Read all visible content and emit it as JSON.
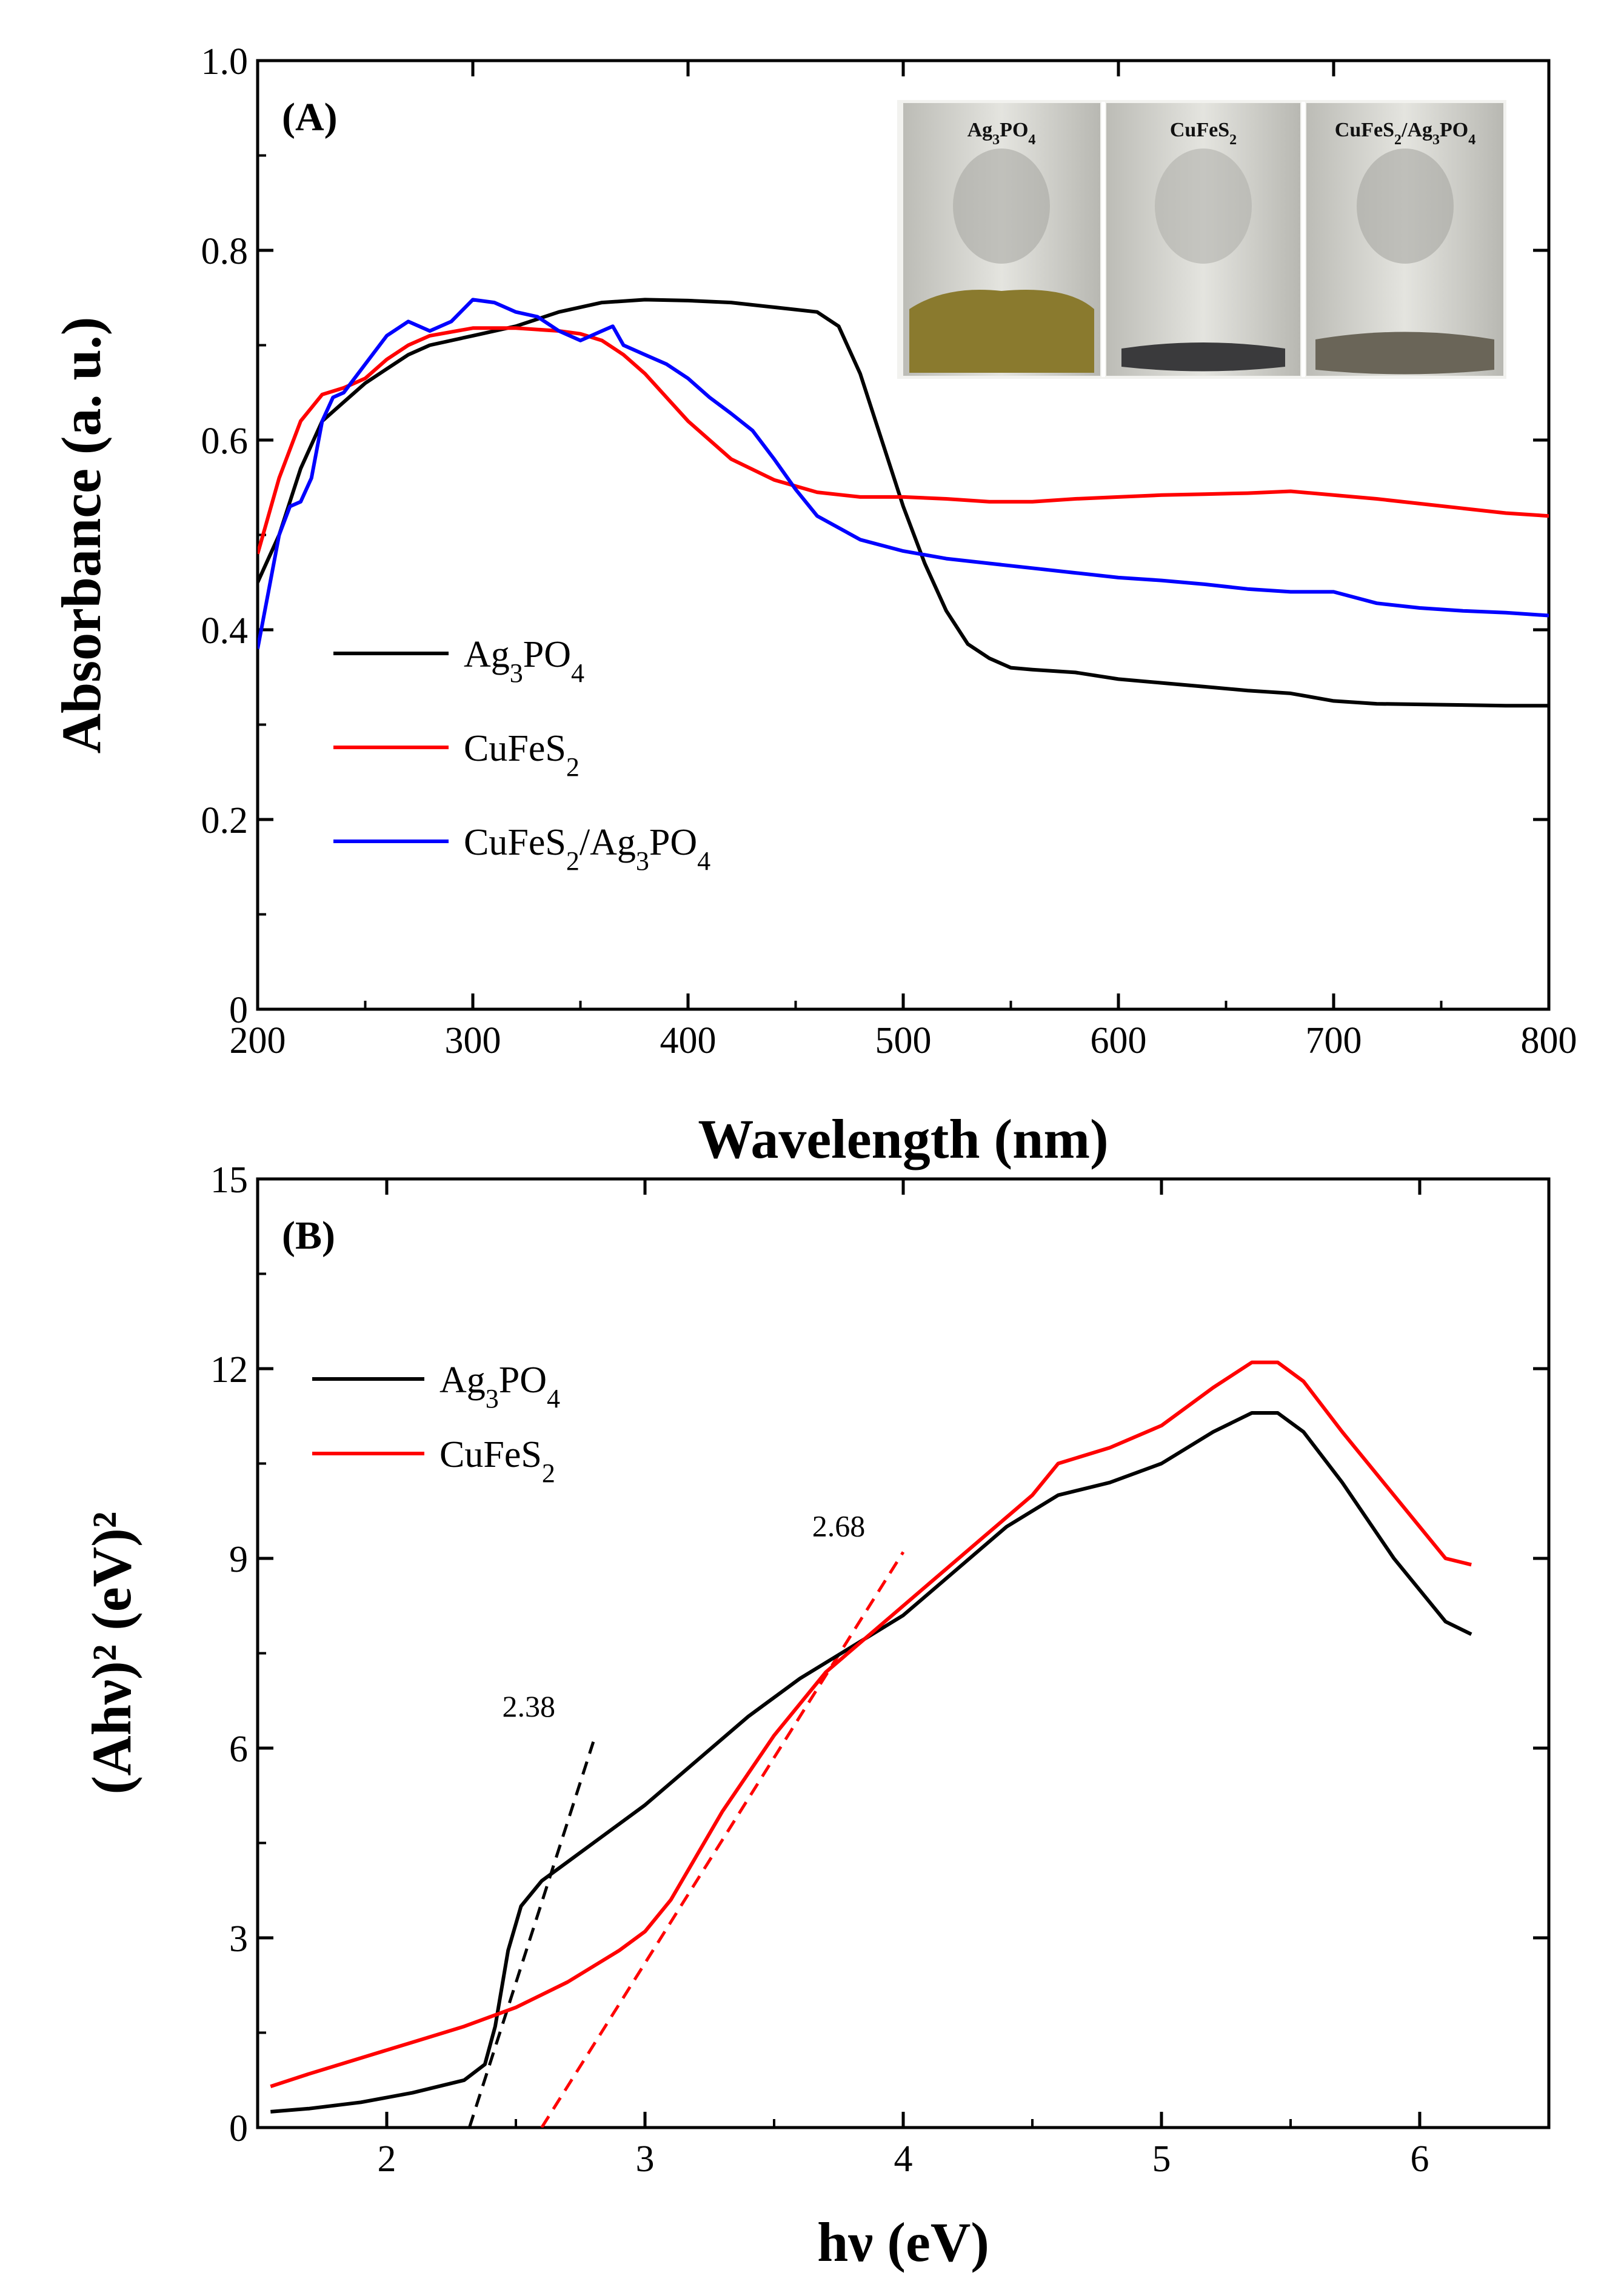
{
  "figure": {
    "panel_a_label": "(A)",
    "panel_b_label": "(B)",
    "inset_photo": {
      "labels": [
        "Ag3PO4",
        "CuFeS2",
        "CuFeS2/Ag3PO4"
      ],
      "powder_colors": [
        "#8a7a2e",
        "#3a3a3c",
        "#6a6558"
      ]
    }
  },
  "chart_data": [
    {
      "type": "line",
      "title": "",
      "xlabel": "Wavelength (nm)",
      "ylabel": "Absorbance (a. u.)",
      "xlim": [
        200,
        800
      ],
      "ylim": [
        0,
        1.0
      ],
      "xticks": [
        200,
        300,
        400,
        500,
        600,
        700,
        800
      ],
      "xtick_labels": [
        "200",
        "300",
        "400",
        "500",
        "600",
        "700",
        "800"
      ],
      "yticks": [
        0,
        0.2,
        0.4,
        0.6,
        0.8,
        1.0
      ],
      "ytick_labels": [
        "0",
        "0.2",
        "0.4",
        "0.6",
        "0.8",
        "1.0"
      ],
      "legend_position": "middle-left",
      "series": [
        {
          "name": "Ag3PO4",
          "color": "#000000",
          "x": [
            200,
            210,
            220,
            230,
            240,
            250,
            260,
            270,
            280,
            300,
            320,
            340,
            360,
            380,
            400,
            420,
            440,
            460,
            470,
            480,
            490,
            500,
            510,
            520,
            530,
            540,
            550,
            560,
            580,
            600,
            620,
            640,
            660,
            680,
            700,
            720,
            750,
            780,
            800
          ],
          "y": [
            0.45,
            0.5,
            0.57,
            0.62,
            0.64,
            0.66,
            0.675,
            0.69,
            0.7,
            0.71,
            0.72,
            0.735,
            0.745,
            0.748,
            0.747,
            0.745,
            0.74,
            0.735,
            0.72,
            0.67,
            0.6,
            0.53,
            0.47,
            0.42,
            0.385,
            0.37,
            0.36,
            0.358,
            0.355,
            0.348,
            0.344,
            0.34,
            0.336,
            0.333,
            0.325,
            0.322,
            0.321,
            0.32,
            0.32
          ]
        },
        {
          "name": "CuFeS2",
          "color": "#ff0000",
          "x": [
            200,
            210,
            220,
            230,
            240,
            250,
            260,
            270,
            280,
            300,
            320,
            340,
            350,
            360,
            370,
            380,
            390,
            400,
            420,
            440,
            460,
            480,
            500,
            520,
            540,
            560,
            580,
            600,
            620,
            640,
            660,
            680,
            700,
            720,
            740,
            760,
            780,
            800
          ],
          "y": [
            0.48,
            0.56,
            0.62,
            0.648,
            0.655,
            0.665,
            0.685,
            0.7,
            0.71,
            0.718,
            0.718,
            0.715,
            0.712,
            0.705,
            0.69,
            0.67,
            0.645,
            0.62,
            0.58,
            0.558,
            0.545,
            0.54,
            0.54,
            0.538,
            0.535,
            0.535,
            0.538,
            0.54,
            0.542,
            0.543,
            0.544,
            0.546,
            0.542,
            0.538,
            0.533,
            0.528,
            0.523,
            0.52
          ]
        },
        {
          "name": "CuFeS2/Ag3PO4",
          "color": "#0000ff",
          "x": [
            200,
            205,
            210,
            215,
            220,
            225,
            230,
            235,
            240,
            250,
            260,
            270,
            280,
            290,
            300,
            310,
            320,
            330,
            340,
            350,
            360,
            365,
            370,
            380,
            390,
            400,
            410,
            420,
            430,
            440,
            450,
            460,
            480,
            500,
            520,
            540,
            560,
            580,
            600,
            620,
            640,
            660,
            680,
            700,
            720,
            740,
            760,
            780,
            800
          ],
          "y": [
            0.38,
            0.44,
            0.5,
            0.53,
            0.535,
            0.56,
            0.62,
            0.645,
            0.65,
            0.68,
            0.71,
            0.725,
            0.715,
            0.725,
            0.748,
            0.745,
            0.735,
            0.73,
            0.715,
            0.705,
            0.715,
            0.72,
            0.7,
            0.69,
            0.68,
            0.665,
            0.645,
            0.628,
            0.61,
            0.58,
            0.548,
            0.52,
            0.495,
            0.483,
            0.475,
            0.47,
            0.465,
            0.46,
            0.455,
            0.452,
            0.448,
            0.443,
            0.44,
            0.44,
            0.428,
            0.423,
            0.42,
            0.418,
            0.415
          ]
        }
      ]
    },
    {
      "type": "line",
      "title": "",
      "xlabel": "hν (eV)",
      "ylabel": "(Ahν)² (eV)²",
      "xlim": [
        1.5,
        6.5
      ],
      "ylim": [
        0,
        15
      ],
      "xticks": [
        2,
        3,
        4,
        5,
        6
      ],
      "xtick_labels": [
        "2",
        "3",
        "4",
        "5",
        "6"
      ],
      "yticks": [
        0,
        3,
        6,
        9,
        12,
        15
      ],
      "ytick_labels": [
        "0",
        "3",
        "6",
        "9",
        "12",
        "15"
      ],
      "legend_position": "top-left",
      "series": [
        {
          "name": "Ag3PO4",
          "color": "#000000",
          "x": [
            1.55,
            1.7,
            1.9,
            2.1,
            2.3,
            2.38,
            2.42,
            2.47,
            2.52,
            2.6,
            2.7,
            2.8,
            3.0,
            3.2,
            3.4,
            3.6,
            3.8,
            4.0,
            4.2,
            4.4,
            4.6,
            4.8,
            5.0,
            5.2,
            5.35,
            5.45,
            5.55,
            5.7,
            5.9,
            6.1,
            6.2
          ],
          "y": [
            0.25,
            0.3,
            0.4,
            0.55,
            0.75,
            1.0,
            1.6,
            2.8,
            3.5,
            3.9,
            4.2,
            4.5,
            5.1,
            5.8,
            6.5,
            7.1,
            7.6,
            8.1,
            8.8,
            9.5,
            10.0,
            10.2,
            10.5,
            11.0,
            11.3,
            11.3,
            11.0,
            10.2,
            9.0,
            8.0,
            7.8
          ]
        },
        {
          "name": "CuFeS2",
          "color": "#ff0000",
          "x": [
            1.55,
            1.7,
            1.9,
            2.1,
            2.3,
            2.5,
            2.7,
            2.9,
            3.0,
            3.1,
            3.2,
            3.3,
            3.5,
            3.7,
            3.9,
            4.1,
            4.3,
            4.5,
            4.6,
            4.8,
            5.0,
            5.2,
            5.35,
            5.45,
            5.55,
            5.7,
            5.9,
            6.1,
            6.2
          ],
          "y": [
            0.65,
            0.85,
            1.1,
            1.35,
            1.6,
            1.9,
            2.3,
            2.8,
            3.1,
            3.6,
            4.3,
            5.0,
            6.2,
            7.2,
            7.9,
            8.6,
            9.3,
            10.0,
            10.5,
            10.75,
            11.1,
            11.7,
            12.1,
            12.1,
            11.8,
            11.0,
            10.0,
            9.0,
            8.9
          ]
        }
      ],
      "tangent_lines": [
        {
          "color": "#000000",
          "x": [
            2.32,
            2.8
          ],
          "y": [
            0,
            6.1
          ],
          "label": "2.38",
          "label_at": [
            2.55,
            6.5
          ]
        },
        {
          "color": "#ff0000",
          "x": [
            2.6,
            4.0
          ],
          "y": [
            0,
            9.1
          ],
          "label": "2.68",
          "label_at": [
            3.75,
            9.35
          ]
        }
      ]
    }
  ]
}
